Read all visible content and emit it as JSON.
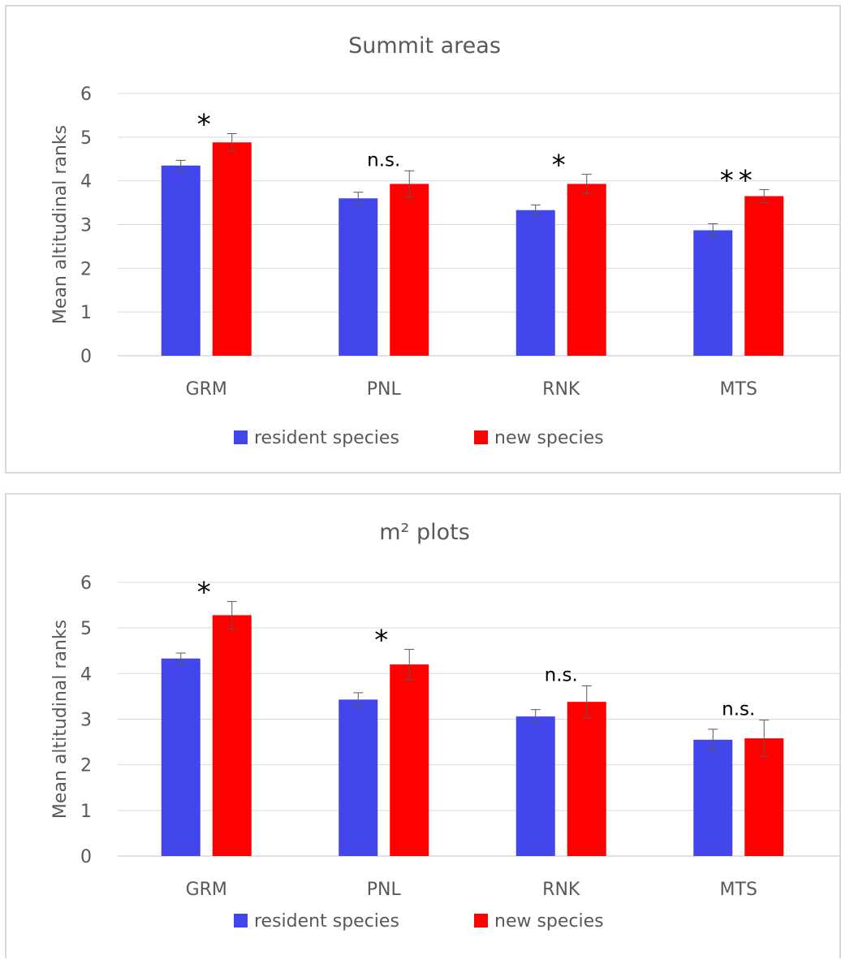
{
  "colors": {
    "resident": "#4347EB",
    "new": "#FF0000",
    "grid": "#D9D9D9",
    "text": "#595959"
  },
  "chart_data": [
    {
      "type": "bar",
      "title": "Summit areas",
      "xlabel": "",
      "ylabel": "Mean altitudinal ranks",
      "ylim": [
        0,
        6
      ],
      "yticks": [
        "0",
        "1",
        "2",
        "3",
        "4",
        "5",
        "6"
      ],
      "categories": [
        "GRM",
        "PNL",
        "RNK",
        "MTS"
      ],
      "series": [
        {
          "name": "resident species",
          "values": [
            4.35,
            3.6,
            3.33,
            2.87
          ],
          "errors": [
            0.12,
            0.14,
            0.12,
            0.15
          ]
        },
        {
          "name": "new species",
          "values": [
            4.88,
            3.93,
            3.93,
            3.65
          ],
          "errors": [
            0.2,
            0.3,
            0.22,
            0.15
          ]
        }
      ],
      "annotations": [
        "*",
        "n.s.",
        "*",
        "**"
      ],
      "grid": true,
      "legend": "bottom"
    },
    {
      "type": "bar",
      "title": "m² plots",
      "xlabel": "",
      "ylabel": "Mean altitudinal ranks",
      "ylim": [
        0,
        6
      ],
      "yticks": [
        "0",
        "1",
        "2",
        "3",
        "4",
        "5",
        "6"
      ],
      "categories": [
        "GRM",
        "PNL",
        "RNK",
        "MTS"
      ],
      "series": [
        {
          "name": "resident species",
          "values": [
            4.33,
            3.43,
            3.06,
            2.55
          ],
          "errors": [
            0.12,
            0.15,
            0.15,
            0.23
          ]
        },
        {
          "name": "new species",
          "values": [
            5.28,
            4.2,
            3.38,
            2.58
          ],
          "errors": [
            0.3,
            0.33,
            0.35,
            0.4
          ]
        }
      ],
      "annotations": [
        "*",
        "*",
        "n.s.",
        "n.s."
      ],
      "grid": true,
      "legend": "bottom"
    }
  ]
}
